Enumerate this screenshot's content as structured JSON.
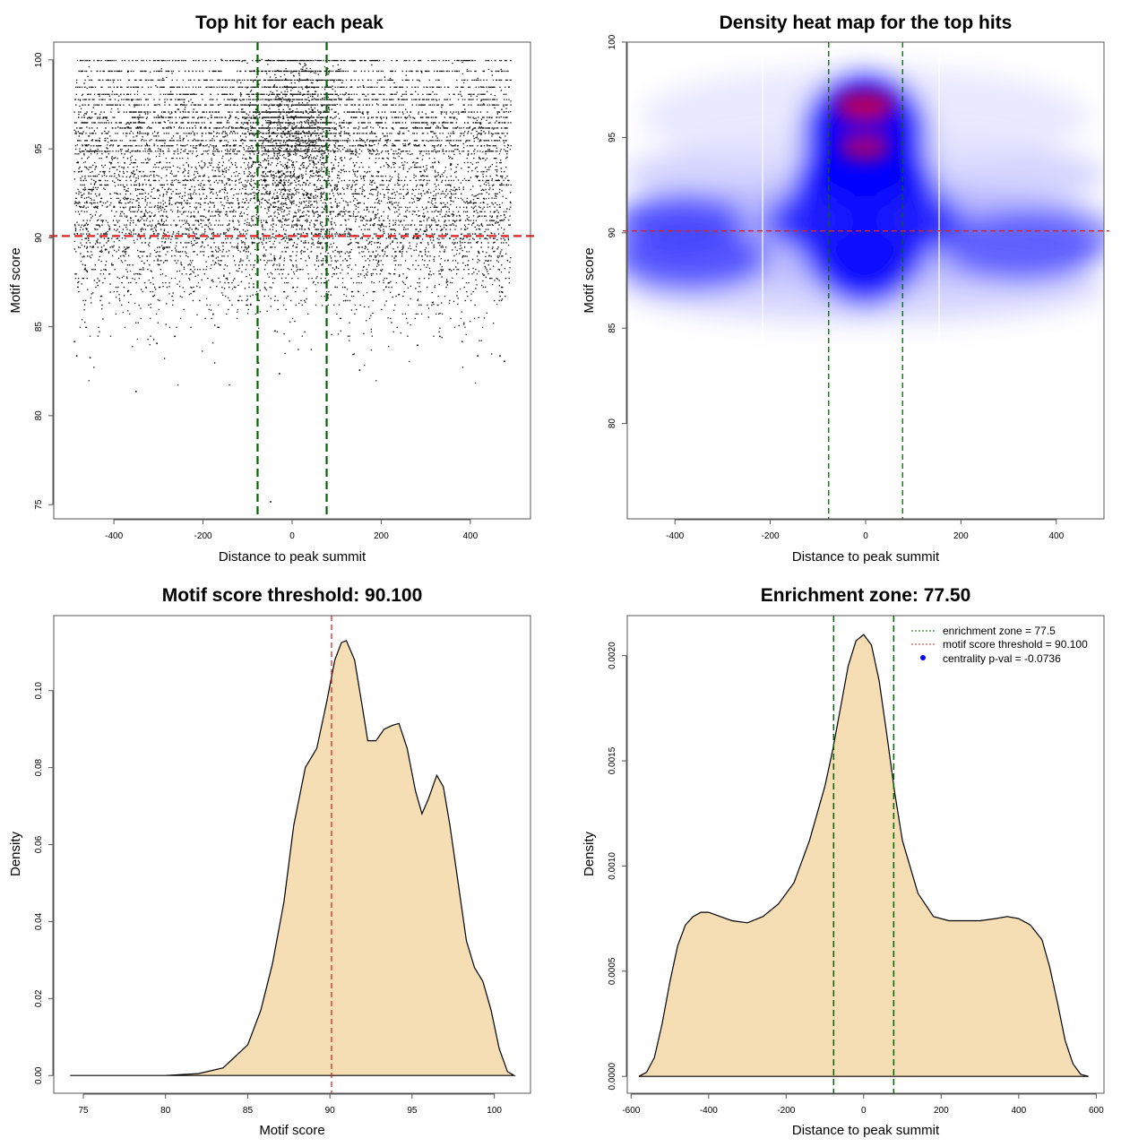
{
  "chart_data": [
    {
      "type": "scatter",
      "title": "Top hit for each peak",
      "xlabel": "Distance to peak summit",
      "ylabel": "Motif score",
      "xlim": [
        -535,
        535
      ],
      "ylim": [
        74.2,
        101.0
      ],
      "x_ticks": [
        -400,
        -200,
        0,
        200,
        400
      ],
      "y_ticks": [
        75,
        80,
        85,
        90,
        95,
        100
      ],
      "hlines": [
        {
          "y": 90.1,
          "color": "#dd2222",
          "style": "dashed"
        }
      ],
      "vlines": [
        {
          "x": -77.5,
          "color": "#006400",
          "style": "dashed"
        },
        {
          "x": 77.5,
          "color": "#006400",
          "style": "dashed"
        }
      ],
      "point_color": "#000000",
      "outlier_points": [
        {
          "x": -352,
          "y": 81.4
        },
        {
          "x": -490,
          "y": 84.2
        },
        {
          "x": -485,
          "y": 83.4
        },
        {
          "x": -455,
          "y": 83.3
        },
        {
          "x": -30,
          "y": 82.4
        },
        {
          "x": -50,
          "y": 75.2
        },
        {
          "x": 150,
          "y": 82.6
        },
        {
          "x": 475,
          "y": 83.1
        },
        {
          "x": 465,
          "y": 83.4
        },
        {
          "x": 415,
          "y": 83.4
        },
        {
          "x": 330,
          "y": 84.5
        },
        {
          "x": -305,
          "y": 84.1
        },
        {
          "x": -265,
          "y": 84.5
        },
        {
          "x": -40,
          "y": 84.8
        },
        {
          "x": 380,
          "y": 84.2
        },
        {
          "x": 280,
          "y": 84.0
        }
      ]
    },
    {
      "type": "heatmap",
      "title": "Density heat map for the top hits",
      "xlabel": "Distance to peak summit",
      "ylabel": "Motif score",
      "xlim": [
        -500,
        500
      ],
      "ylim": [
        75,
        100
      ],
      "x_ticks": [
        -400,
        -200,
        0,
        200,
        400
      ],
      "y_ticks": [
        80,
        85,
        90,
        95,
        100
      ],
      "hlines": [
        {
          "y": 90.1,
          "color": "#dd2222",
          "style": "dashed"
        }
      ],
      "vlines": [
        {
          "x": -77.5,
          "color": "#006400",
          "style": "dashed"
        },
        {
          "x": 77.5,
          "color": "#006400",
          "style": "dashed"
        }
      ],
      "color_scale": [
        "#ffffff",
        "#0000ff",
        "#ff0000"
      ]
    },
    {
      "type": "area",
      "title": "Motif score threshold: 90.100",
      "xlabel": "Motif score",
      "ylabel": "Density",
      "xlim": [
        73.2,
        102.2
      ],
      "ylim": [
        -0.0046,
        0.1195
      ],
      "x_ticks": [
        75,
        80,
        85,
        90,
        95,
        100
      ],
      "y_ticks": [
        0.0,
        0.02,
        0.04,
        0.06,
        0.08,
        0.1
      ],
      "y_tick_labels": [
        "0.00",
        "0.02",
        "0.04",
        "0.06",
        "0.08",
        "0.10"
      ],
      "vlines": [
        {
          "x": 90.1,
          "color": "#dd2222",
          "style": "dashed"
        }
      ],
      "fill": "#f5deb3",
      "x": [
        74.2,
        80.0,
        82.0,
        83.5,
        85.0,
        85.8,
        86.5,
        87.2,
        87.8,
        88.5,
        89.2,
        89.8,
        90.3,
        90.7,
        91.0,
        91.5,
        92.0,
        92.3,
        92.8,
        93.3,
        93.8,
        94.2,
        94.7,
        95.2,
        95.6,
        96.0,
        96.5,
        96.9,
        97.3,
        97.8,
        98.3,
        98.8,
        99.3,
        99.8,
        100.3,
        100.8,
        101.2
      ],
      "y": [
        0.0,
        0.0,
        0.0005,
        0.002,
        0.008,
        0.017,
        0.029,
        0.045,
        0.065,
        0.08,
        0.085,
        0.097,
        0.108,
        0.1125,
        0.113,
        0.108,
        0.095,
        0.087,
        0.087,
        0.09,
        0.091,
        0.0915,
        0.085,
        0.074,
        0.068,
        0.072,
        0.078,
        0.075,
        0.065,
        0.05,
        0.035,
        0.028,
        0.0245,
        0.017,
        0.007,
        0.001,
        0.0
      ]
    },
    {
      "type": "area",
      "title": "Enrichment zone: 77.50",
      "xlabel": "Distance to peak summit",
      "ylabel": "Density",
      "xlim": [
        -610,
        620
      ],
      "ylim": [
        -8e-05,
        0.00219
      ],
      "x_ticks": [
        -600,
        -400,
        -200,
        0,
        200,
        400,
        600
      ],
      "y_ticks": [
        0.0,
        0.0005,
        0.001,
        0.0015,
        0.002
      ],
      "y_tick_labels": [
        "0.0000",
        "0.0005",
        "0.0010",
        "0.0015",
        "0.0020"
      ],
      "vlines": [
        {
          "x": -77.5,
          "color": "#006400",
          "style": "dashed"
        },
        {
          "x": 77.5,
          "color": "#006400",
          "style": "dashed"
        }
      ],
      "fill": "#f5deb3",
      "x": [
        -580,
        -560,
        -540,
        -520,
        -500,
        -480,
        -460,
        -440,
        -420,
        -400,
        -370,
        -340,
        -300,
        -260,
        -220,
        -180,
        -140,
        -100,
        -80,
        -60,
        -40,
        -20,
        0,
        20,
        40,
        60,
        80,
        100,
        140,
        180,
        220,
        260,
        300,
        340,
        370,
        400,
        430,
        460,
        480,
        500,
        520,
        540,
        560,
        580
      ],
      "y": [
        0.0,
        2e-05,
        9e-05,
        0.00025,
        0.00045,
        0.00062,
        0.00072,
        0.00076,
        0.00078,
        0.00078,
        0.00076,
        0.00074,
        0.00073,
        0.00076,
        0.00082,
        0.00092,
        0.00112,
        0.00138,
        0.00155,
        0.00175,
        0.00195,
        0.00207,
        0.0021,
        0.00205,
        0.00188,
        0.00162,
        0.00135,
        0.00112,
        0.00087,
        0.00076,
        0.00074,
        0.00074,
        0.00074,
        0.00075,
        0.00076,
        0.00075,
        0.00072,
        0.00065,
        0.00052,
        0.00035,
        0.00017,
        6e-05,
        1e-05,
        0.0
      ],
      "legend": [
        {
          "label": "enrichment zone = 77.5",
          "color": "#006400",
          "marker": "dotted-line"
        },
        {
          "label": "motif score threshold = 90.100",
          "color": "#dd2222",
          "marker": "dotted-line"
        },
        {
          "label": "centrality p-val = -0.0736",
          "color": "#0000ff",
          "marker": "dot"
        }
      ],
      "legend_position": "top-right"
    }
  ]
}
